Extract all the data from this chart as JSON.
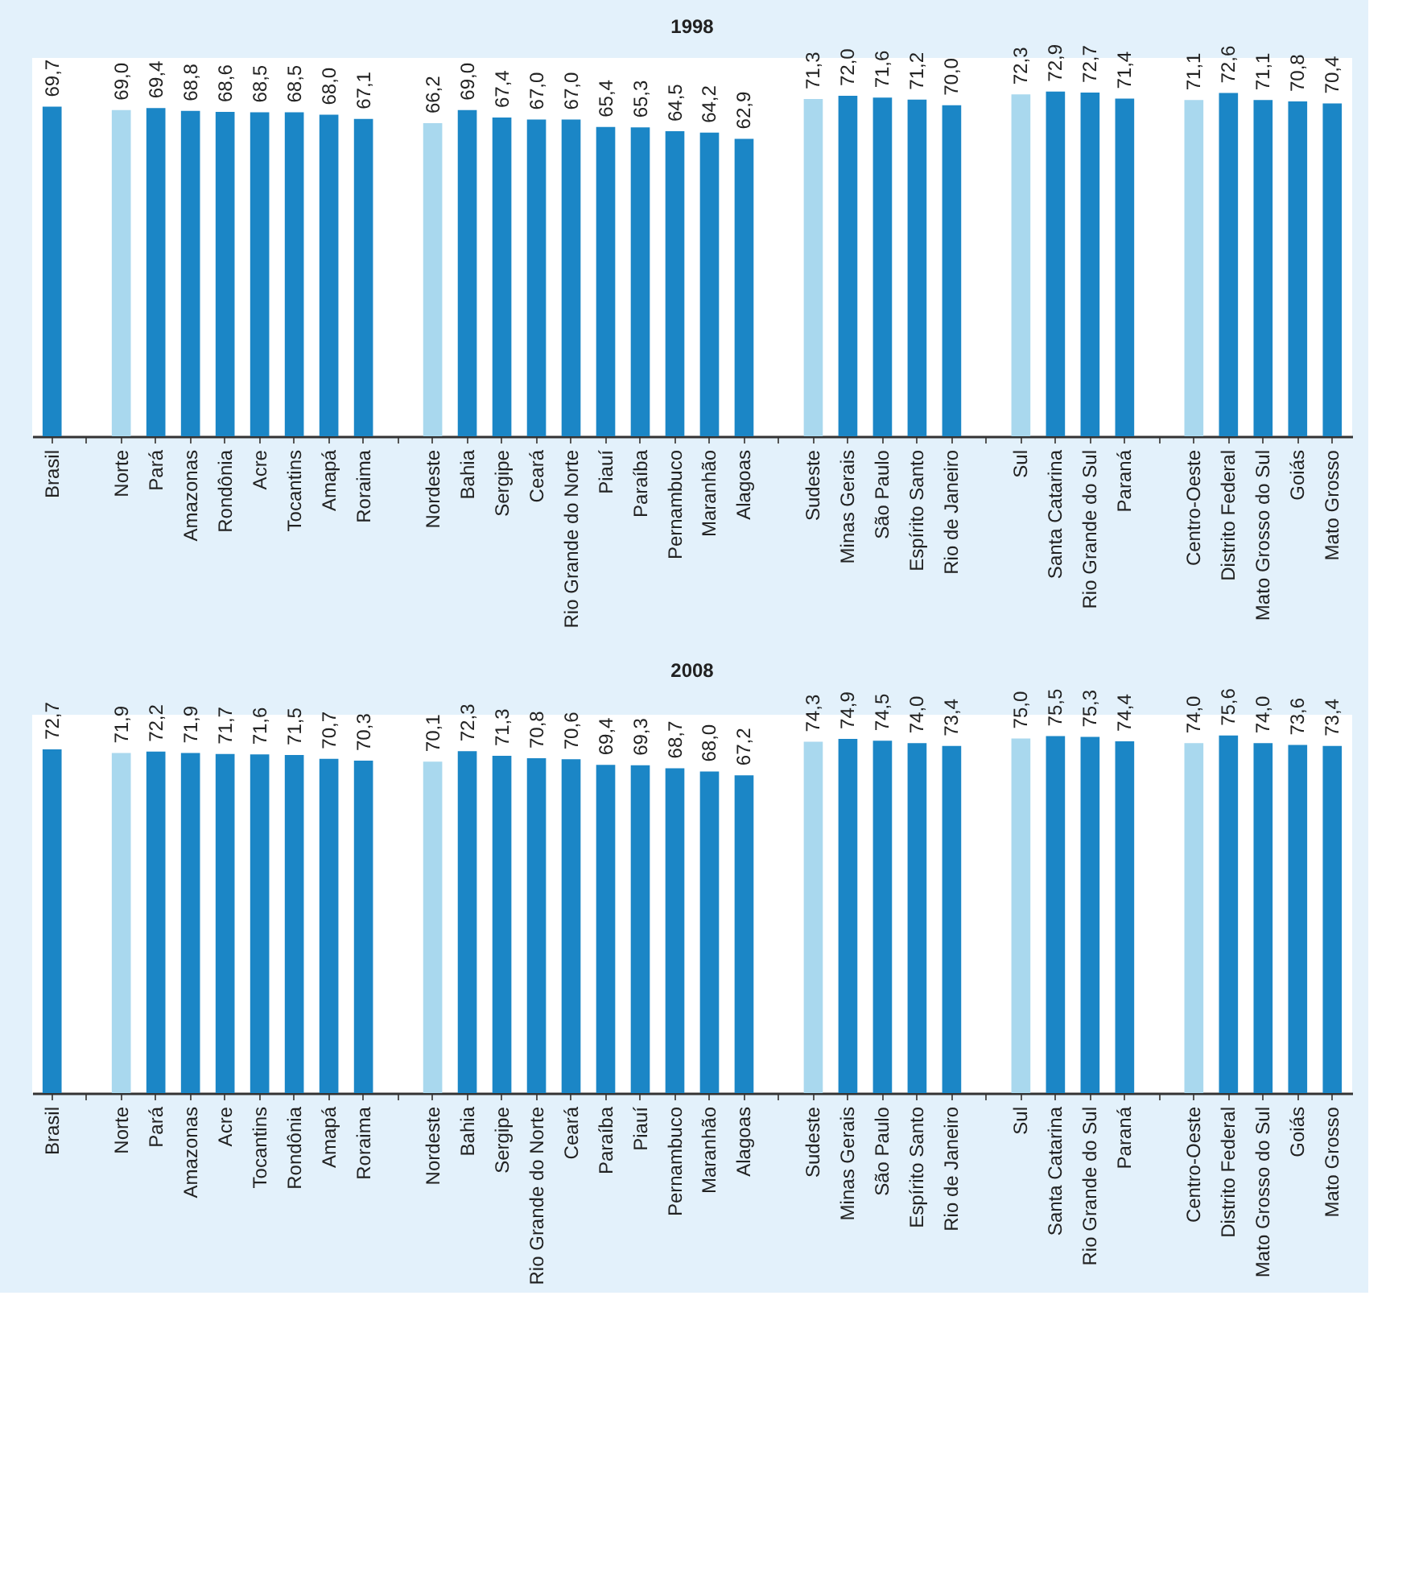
{
  "chart_data": [
    {
      "type": "bar",
      "title": "1998",
      "categories": [
        "Brasil",
        null,
        "Norte",
        "Pará",
        "Amazonas",
        "Rondônia",
        "Acre",
        "Tocantins",
        "Amapá",
        "Roraima",
        null,
        "Nordeste",
        "Bahia",
        "Sergipe",
        "Ceará",
        "Rio Grande do Norte",
        "Piauí",
        "Paraíba",
        "Pernambuco",
        "Maranhão",
        "Alagoas",
        null,
        "Sudeste",
        "Minas Gerais",
        "São Paulo",
        "Espírito Santo",
        "Rio de Janeiro",
        null,
        "Sul",
        "Santa Catarina",
        "Rio Grande do Sul",
        "Paraná",
        null,
        "Centro-Oeste",
        "Distrito Federal",
        "Mato Grosso do Sul",
        "Goiás",
        "Mato Grosso"
      ],
      "values": [
        69.7,
        null,
        69.0,
        69.4,
        68.8,
        68.6,
        68.5,
        68.5,
        68.0,
        67.1,
        null,
        66.2,
        69.0,
        67.4,
        67.0,
        67.0,
        65.4,
        65.3,
        64.5,
        64.2,
        62.9,
        null,
        71.3,
        72.0,
        71.6,
        71.2,
        70.0,
        null,
        72.3,
        72.9,
        72.7,
        71.4,
        null,
        71.1,
        72.6,
        71.1,
        70.8,
        70.4
      ],
      "value_labels": [
        "69,7",
        null,
        "69,0",
        "69,4",
        "68,8",
        "68,6",
        "68,5",
        "68,5",
        "68,0",
        "67,1",
        null,
        "66,2",
        "69,0",
        "67,4",
        "67,0",
        "67,0",
        "65,4",
        "65,3",
        "64,5",
        "64,2",
        "62,9",
        null,
        "71,3",
        "72,0",
        "71,6",
        "71,2",
        "70,0",
        null,
        "72,3",
        "72,9",
        "72,7",
        "71,4",
        null,
        "71,1",
        "72,6",
        "71,1",
        "70,8",
        "70,4"
      ],
      "colors": [
        "#1b86c6",
        null,
        "#a9d8ee",
        "#1b86c6",
        "#1b86c6",
        "#1b86c6",
        "#1b86c6",
        "#1b86c6",
        "#1b86c6",
        "#1b86c6",
        null,
        "#a9d8ee",
        "#1b86c6",
        "#1b86c6",
        "#1b86c6",
        "#1b86c6",
        "#1b86c6",
        "#1b86c6",
        "#1b86c6",
        "#1b86c6",
        "#1b86c6",
        null,
        "#a9d8ee",
        "#1b86c6",
        "#1b86c6",
        "#1b86c6",
        "#1b86c6",
        null,
        "#a9d8ee",
        "#1b86c6",
        "#1b86c6",
        "#1b86c6",
        null,
        "#a9d8ee",
        "#1b86c6",
        "#1b86c6",
        "#1b86c6",
        "#1b86c6"
      ],
      "ylim": [
        0,
        80
      ],
      "tick_labels": "x"
    },
    {
      "type": "bar",
      "title": "2008",
      "categories": [
        "Brasil",
        null,
        "Norte",
        "Pará",
        "Amazonas",
        "Acre",
        "Tocantins",
        "Rondônia",
        "Amapá",
        "Roraima",
        null,
        "Nordeste",
        "Bahia",
        "Sergipe",
        "Rio Grande do Norte",
        "Ceará",
        "Paraíba",
        "Piauí",
        "Pernambuco",
        "Maranhão",
        "Alagoas",
        null,
        "Sudeste",
        "Minas Gerais",
        "São Paulo",
        "Espírito Santo",
        "Rio de Janeiro",
        null,
        "Sul",
        "Santa Catarina",
        "Rio Grande do Sul",
        "Paraná",
        null,
        "Centro-Oeste",
        "Distrito Federal",
        "Mato Grosso do Sul",
        "Goiás",
        "Mato Grosso"
      ],
      "values": [
        72.7,
        null,
        71.9,
        72.2,
        71.9,
        71.7,
        71.6,
        71.5,
        70.7,
        70.3,
        null,
        70.1,
        72.3,
        71.3,
        70.8,
        70.6,
        69.4,
        69.3,
        68.7,
        68.0,
        67.2,
        null,
        74.3,
        74.9,
        74.5,
        74.0,
        73.4,
        null,
        75.0,
        75.5,
        75.3,
        74.4,
        null,
        74.0,
        75.6,
        74.0,
        73.6,
        73.4
      ],
      "value_labels": [
        "72,7",
        null,
        "71,9",
        "72,2",
        "71,9",
        "71,7",
        "71,6",
        "71,5",
        "70,7",
        "70,3",
        null,
        "70,1",
        "72,3",
        "71,3",
        "70,8",
        "70,6",
        "69,4",
        "69,3",
        "68,7",
        "68,0",
        "67,2",
        null,
        "74,3",
        "74,9",
        "74,5",
        "74,0",
        "73,4",
        null,
        "75,0",
        "75,5",
        "75,3",
        "74,4",
        null,
        "74,0",
        "75,6",
        "74,0",
        "73,6",
        "73,4"
      ],
      "colors": [
        "#1b86c6",
        null,
        "#a9d8ee",
        "#1b86c6",
        "#1b86c6",
        "#1b86c6",
        "#1b86c6",
        "#1b86c6",
        "#1b86c6",
        "#1b86c6",
        null,
        "#a9d8ee",
        "#1b86c6",
        "#1b86c6",
        "#1b86c6",
        "#1b86c6",
        "#1b86c6",
        "#1b86c6",
        "#1b86c6",
        "#1b86c6",
        "#1b86c6",
        null,
        "#a9d8ee",
        "#1b86c6",
        "#1b86c6",
        "#1b86c6",
        "#1b86c6",
        null,
        "#a9d8ee",
        "#1b86c6",
        "#1b86c6",
        "#1b86c6",
        null,
        "#a9d8ee",
        "#1b86c6",
        "#1b86c6",
        "#1b86c6",
        "#1b86c6"
      ],
      "ylim": [
        0,
        80
      ],
      "tick_labels": "x"
    }
  ]
}
